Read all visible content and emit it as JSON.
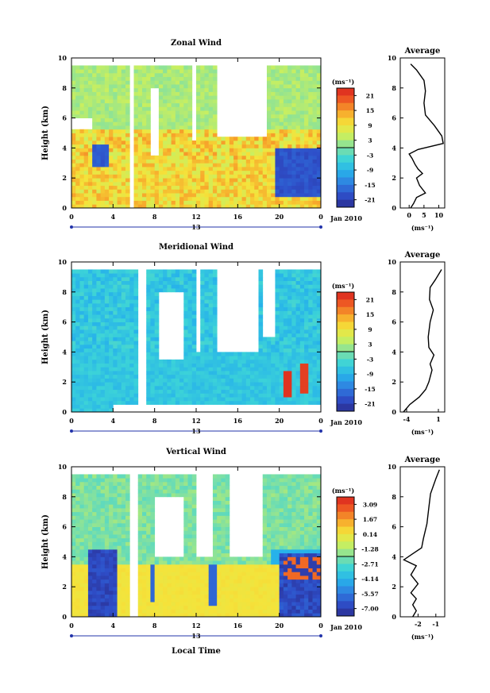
{
  "chart_data": [
    {
      "type": "heatmap",
      "title": "Zonal Wind",
      "ylabel": "Height (km)",
      "xlabel": "",
      "x_ticks": [
        "0",
        "4",
        "8",
        "12",
        "16",
        "20",
        "0"
      ],
      "y_ticks": [
        "0",
        "2",
        "4",
        "6",
        "8",
        "10"
      ],
      "date_labels": [
        "13",
        "Jan 2010"
      ],
      "xlim": [
        0,
        24
      ],
      "ylim": [
        0,
        10
      ],
      "colorbar": {
        "unit": "(ms⁻¹)",
        "ticks": [
          "21",
          "15",
          "9",
          "3",
          "-3",
          "-9",
          "-15",
          "-21"
        ],
        "range": [
          -24,
          24
        ]
      },
      "average_profile": {
        "title": "Average",
        "xlabel": "(ms⁻¹)",
        "x_ticks": [
          "0",
          "5",
          "10"
        ],
        "xlim": [
          -3,
          12
        ],
        "points": [
          [
            0.5,
            0
          ],
          [
            1.5,
            0.3
          ],
          [
            2.5,
            0.7
          ],
          [
            5.5,
            1.0
          ],
          [
            3.5,
            1.5
          ],
          [
            2.5,
            2.0
          ],
          [
            4.5,
            2.3
          ],
          [
            3.0,
            2.6
          ],
          [
            2.0,
            2.9
          ],
          [
            1.0,
            3.3
          ],
          [
            0.0,
            3.6
          ],
          [
            3.0,
            3.9
          ],
          [
            11.5,
            4.3
          ],
          [
            11.0,
            4.8
          ],
          [
            8.5,
            5.5
          ],
          [
            5.5,
            6.2
          ],
          [
            5.0,
            7.0
          ],
          [
            5.5,
            7.8
          ],
          [
            5.0,
            8.5
          ],
          [
            2.5,
            9.2
          ],
          [
            0.5,
            9.6
          ]
        ]
      }
    },
    {
      "type": "heatmap",
      "title": "Meridional Wind",
      "ylabel": "Height (km)",
      "xlabel": "",
      "x_ticks": [
        "0",
        "4",
        "8",
        "12",
        "16",
        "20",
        "0"
      ],
      "y_ticks": [
        "0",
        "2",
        "4",
        "6",
        "8",
        "10"
      ],
      "date_labels": [
        "13",
        "Jan 2010"
      ],
      "xlim": [
        0,
        24
      ],
      "ylim": [
        0,
        10
      ],
      "colorbar": {
        "unit": "(ms⁻¹)",
        "ticks": [
          "21",
          "15",
          "9",
          "3",
          "-3",
          "-9",
          "-15",
          "-21"
        ],
        "range": [
          -24,
          24
        ]
      },
      "average_profile": {
        "title": "Average",
        "xlabel": "(ms⁻¹)",
        "x_ticks": [
          "-4",
          "1"
        ],
        "xlim": [
          -5,
          2
        ],
        "points": [
          [
            -4.5,
            0
          ],
          [
            -3.5,
            0.5
          ],
          [
            -2.0,
            1.0
          ],
          [
            -1.0,
            1.5
          ],
          [
            -0.5,
            2.0
          ],
          [
            0.0,
            2.8
          ],
          [
            -0.3,
            3.2
          ],
          [
            0.3,
            3.8
          ],
          [
            -0.5,
            4.3
          ],
          [
            -0.6,
            5.0
          ],
          [
            -0.3,
            6.0
          ],
          [
            0.2,
            6.8
          ],
          [
            -0.4,
            7.5
          ],
          [
            -0.3,
            8.3
          ],
          [
            0.5,
            8.8
          ],
          [
            1.5,
            9.5
          ]
        ]
      }
    },
    {
      "type": "heatmap",
      "title": "Vertical Wind",
      "ylabel": "Height (km)",
      "xlabel": "Local Time",
      "x_ticks": [
        "0",
        "4",
        "8",
        "12",
        "16",
        "20",
        "0"
      ],
      "y_ticks": [
        "0",
        "2",
        "4",
        "6",
        "8",
        "10"
      ],
      "date_labels": [
        "13",
        "Jan 2010"
      ],
      "xlim": [
        0,
        24
      ],
      "ylim": [
        0,
        10
      ],
      "colorbar": {
        "unit": "(ms⁻¹)",
        "ticks": [
          "3.09",
          "1.67",
          "0.14",
          "-1.28",
          "-2.71",
          "-4.14",
          "-5.57",
          "-7.00"
        ],
        "range": [
          -8,
          4
        ]
      },
      "average_profile": {
        "title": "Average",
        "xlabel": "(ms⁻¹)",
        "x_ticks": [
          "-2",
          "-1"
        ],
        "xlim": [
          -3,
          -0.5
        ],
        "points": [
          [
            -2.3,
            0
          ],
          [
            -2.1,
            0.4
          ],
          [
            -2.3,
            0.8
          ],
          [
            -2.1,
            1.2
          ],
          [
            -2.4,
            1.6
          ],
          [
            -2.0,
            2.2
          ],
          [
            -2.4,
            2.8
          ],
          [
            -2.1,
            3.4
          ],
          [
            -2.8,
            3.8
          ],
          [
            -2.3,
            4.2
          ],
          [
            -1.8,
            4.6
          ],
          [
            -1.7,
            5.2
          ],
          [
            -1.5,
            6.2
          ],
          [
            -1.4,
            7.2
          ],
          [
            -1.3,
            8.2
          ],
          [
            -1.0,
            9.2
          ],
          [
            -0.8,
            9.8
          ]
        ]
      }
    }
  ]
}
